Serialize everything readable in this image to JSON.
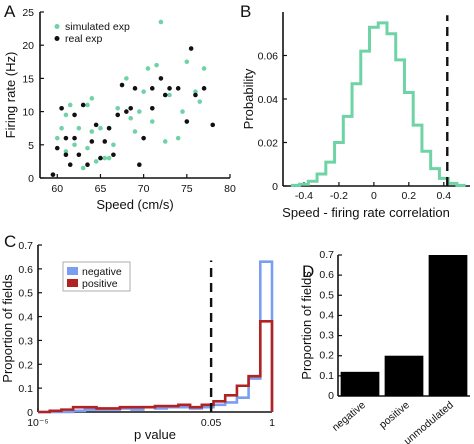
{
  "chart_data": [
    {
      "panel": "A",
      "type": "scatter",
      "xlabel": "Speed (cm/s)",
      "ylabel": "Firing rate (Hz)",
      "xlim": [
        58,
        80
      ],
      "ylim": [
        0,
        25
      ],
      "xticks": [
        60,
        65,
        70,
        75,
        80
      ],
      "yticks": [
        0,
        5,
        10,
        15,
        20,
        25
      ],
      "legend_position": "top-left",
      "series": [
        {
          "name": "simulated exp",
          "color": "#6fd3a6",
          "points": [
            [
              59.5,
              0.5
            ],
            [
              60,
              6
            ],
            [
              60.5,
              7.5
            ],
            [
              60.5,
              10.5
            ],
            [
              61,
              4
            ],
            [
              61,
              9.5
            ],
            [
              61.5,
              11
            ],
            [
              62,
              5
            ],
            [
              62.5,
              7.5
            ],
            [
              63,
              1.5
            ],
            [
              63.5,
              4.5
            ],
            [
              63.5,
              11
            ],
            [
              64,
              7
            ],
            [
              64.5,
              2.5
            ],
            [
              65,
              7.5
            ],
            [
              65.5,
              3
            ],
            [
              66,
              7.5
            ],
            [
              66.5,
              5
            ],
            [
              67,
              10.5
            ],
            [
              68,
              15
            ],
            [
              69,
              7
            ],
            [
              69.5,
              10
            ],
            [
              70,
              13
            ],
            [
              70.5,
              16.5
            ],
            [
              71,
              8.5
            ],
            [
              71.5,
              17
            ],
            [
              72,
              23.5
            ],
            [
              73,
              12.5
            ],
            [
              74,
              6
            ],
            [
              74.5,
              10
            ],
            [
              75,
              17.5
            ],
            [
              76,
              13
            ],
            [
              76.5,
              11.5
            ],
            [
              77,
              16.5
            ],
            [
              64,
              12
            ],
            [
              66,
              3
            ],
            [
              72.5,
              5.5
            ],
            [
              68.5,
              9
            ]
          ]
        },
        {
          "name": "real exp",
          "color": "#111111",
          "points": [
            [
              59.5,
              0.5
            ],
            [
              60,
              4.5
            ],
            [
              60.5,
              10.5
            ],
            [
              61,
              3.5
            ],
            [
              61,
              6
            ],
            [
              61.5,
              2
            ],
            [
              62,
              6
            ],
            [
              62,
              9.5
            ],
            [
              62.5,
              3.5
            ],
            [
              63,
              11
            ],
            [
              63.5,
              2
            ],
            [
              64,
              5.5
            ],
            [
              64.5,
              8
            ],
            [
              65,
              3
            ],
            [
              65.5,
              5.5
            ],
            [
              66,
              7.5
            ],
            [
              66.5,
              3.5
            ],
            [
              67,
              9.5
            ],
            [
              67.5,
              14
            ],
            [
              68,
              10
            ],
            [
              68.5,
              10.5
            ],
            [
              69,
              13.5
            ],
            [
              69.5,
              2
            ],
            [
              70,
              6
            ],
            [
              71,
              13.5
            ],
            [
              71,
              10.5
            ],
            [
              72,
              15
            ],
            [
              72.5,
              12.5
            ],
            [
              73,
              13.5
            ],
            [
              74,
              13.5
            ],
            [
              75,
              8.5
            ],
            [
              75.5,
              19.5
            ],
            [
              76,
              12.5
            ],
            [
              77,
              13.5
            ],
            [
              78,
              8
            ]
          ]
        }
      ]
    },
    {
      "panel": "B",
      "type": "line",
      "xlabel": "Speed - firing rate correlation",
      "ylabel": "Probability",
      "xlim": [
        -0.52,
        0.55
      ],
      "ylim": [
        0,
        0.08
      ],
      "xticks": [
        -0.4,
        -0.2,
        0,
        0.2,
        0.4
      ],
      "xtick_labels": [
        "-0.4",
        "-0.2",
        "0",
        "0.2",
        "0.4"
      ],
      "yticks": [
        0,
        0.02,
        0.04,
        0.06
      ],
      "ytick_labels": [
        "0",
        "0.02",
        "0.04",
        "0.06"
      ],
      "series": [
        {
          "color": "#6fd3a6",
          "x": [
            -0.45,
            -0.4,
            -0.35,
            -0.3,
            -0.25,
            -0.2,
            -0.15,
            -0.1,
            -0.05,
            0,
            0.05,
            0.1,
            0.15,
            0.2,
            0.25,
            0.3,
            0.35,
            0.4,
            0.45,
            0.5
          ],
          "y": [
            0.0003,
            0.0008,
            0.0022,
            0.0055,
            0.011,
            0.02,
            0.032,
            0.047,
            0.062,
            0.073,
            0.075,
            0.07,
            0.058,
            0.043,
            0.028,
            0.016,
            0.008,
            0.0035,
            0.0012,
            0.0003
          ]
        }
      ],
      "reference_line": {
        "x": 0.42,
        "style": "dashed"
      }
    },
    {
      "panel": "C",
      "type": "line",
      "xlabel": "p value",
      "ylabel": "Proportion of fields",
      "x_scale": "log",
      "xlim": [
        1e-05,
        1
      ],
      "ylim": [
        0,
        0.7
      ],
      "xtick_labels": [
        "10⁻⁵",
        "0.05",
        "1"
      ],
      "yticks": [
        0,
        0.1,
        0.2,
        0.3,
        0.4,
        0.5,
        0.6,
        0.7
      ],
      "legend_position": "top-left",
      "series": [
        {
          "name": "negative",
          "color": "#7b9ef2",
          "bin_edges": [
            1e-05,
            1.78e-05,
            3.16e-05,
            5.62e-05,
            0.0001,
            0.000178,
            0.000316,
            0.000562,
            0.001,
            0.00178,
            0.00316,
            0.00562,
            0.01,
            0.0178,
            0.0316,
            0.0562,
            0.1,
            0.178,
            0.316,
            0.562,
            1
          ],
          "values": [
            0,
            0,
            0,
            0.005,
            0.01,
            0.01,
            0.01,
            0.015,
            0.01,
            0.02,
            0.015,
            0.02,
            0.02,
            0.015,
            0.02,
            0.03,
            0.04,
            0.06,
            0.14,
            0.63
          ]
        },
        {
          "name": "positive",
          "color": "#b22222",
          "bin_edges": [
            1e-05,
            1.78e-05,
            3.16e-05,
            5.62e-05,
            0.0001,
            0.000178,
            0.000316,
            0.000562,
            0.001,
            0.00178,
            0.00316,
            0.00562,
            0.01,
            0.0178,
            0.0316,
            0.0562,
            0.1,
            0.178,
            0.316,
            0.562,
            1
          ],
          "values": [
            0,
            0.005,
            0.01,
            0.02,
            0.02,
            0.015,
            0.015,
            0.02,
            0.02,
            0.02,
            0.025,
            0.025,
            0.03,
            0.02,
            0.03,
            0.045,
            0.07,
            0.11,
            0.15,
            0.38
          ]
        }
      ],
      "reference_line": {
        "x": 0.05,
        "style": "dashed"
      }
    },
    {
      "panel": "D",
      "type": "bar",
      "ylabel": "Proportion of fields",
      "categories": [
        "negative",
        "positive",
        "unmodulated"
      ],
      "values": [
        0.12,
        0.2,
        0.7
      ],
      "color": "#000000",
      "ylim": [
        0,
        0.7
      ],
      "yticks": [
        0,
        0.1,
        0.2,
        0.3,
        0.4,
        0.5,
        0.6,
        0.7
      ]
    }
  ]
}
